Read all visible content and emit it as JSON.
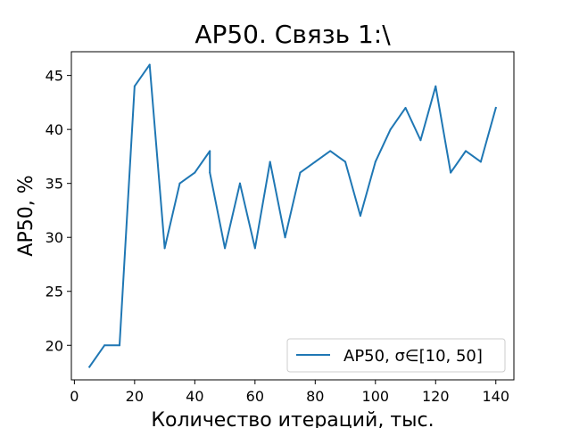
{
  "chart_data": {
    "type": "line",
    "title": "AP50. Связь 1:\\",
    "xlabel": "Количество итераций, тыс.",
    "ylabel": "AP50, %",
    "xlim": [
      -1,
      146
    ],
    "ylim": [
      16.8,
      47.2
    ],
    "xticks": [
      0,
      20,
      40,
      60,
      80,
      100,
      120,
      140
    ],
    "yticks": [
      20,
      25,
      30,
      35,
      40,
      45
    ],
    "xtick_labels": [
      "0",
      "20",
      "40",
      "60",
      "80",
      "100",
      "120",
      "140"
    ],
    "ytick_labels": [
      "20",
      "25",
      "30",
      "35",
      "40",
      "45"
    ],
    "grid": false,
    "legend_position": "lower-right",
    "colors": {
      "line": "#1f77b4",
      "axes": "#000000",
      "legend_border": "#cccccc"
    },
    "series": [
      {
        "name": "AP50, σ∈[10, 50]",
        "x": [
          5,
          10,
          15,
          20,
          25,
          30,
          35,
          40,
          45,
          45,
          50,
          55,
          60,
          65,
          70,
          75,
          80,
          85,
          90,
          95,
          100,
          105,
          110,
          115,
          120,
          125,
          130,
          135,
          140
        ],
        "y": [
          18,
          20,
          20,
          44,
          46,
          29,
          35,
          36,
          38,
          36,
          29,
          35,
          29,
          37,
          30,
          36,
          37,
          38,
          37,
          32,
          37,
          40,
          42,
          39,
          44,
          36,
          38,
          37,
          42
        ]
      }
    ]
  }
}
